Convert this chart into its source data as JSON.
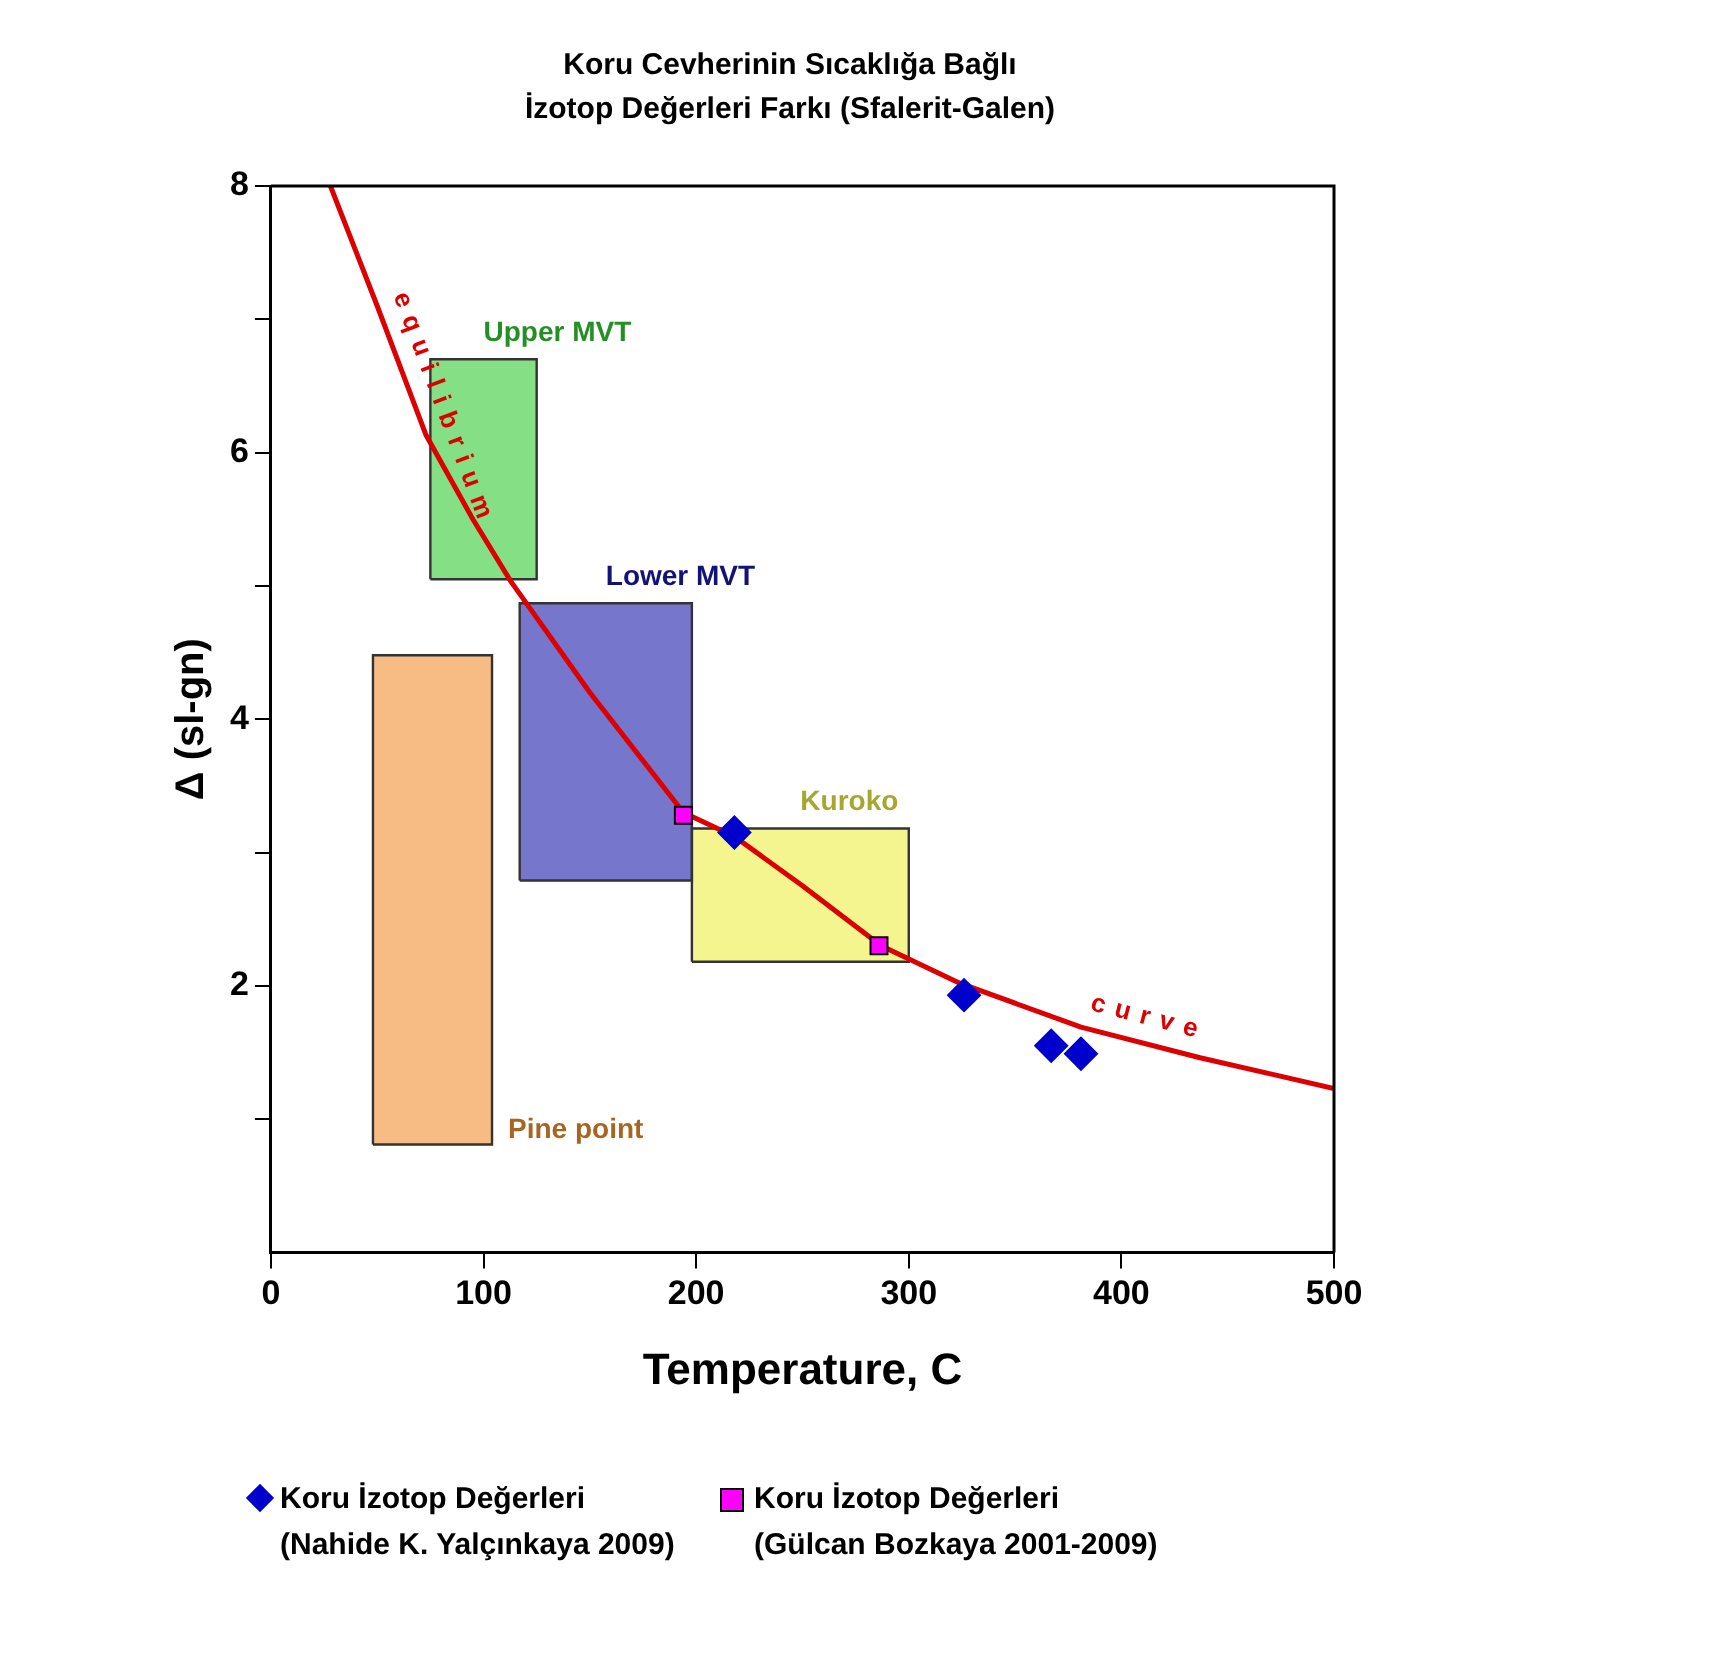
{
  "chart_data": {
    "type": "scatter",
    "title": "Koru Cevherinin Sıcaklığa Bağlı İzotop Değerleri Farkı (Sfalerit-Galen)",
    "xlabel": "Temperature, C",
    "ylabel": "Δ (sl-gn)",
    "xlim": [
      0,
      500
    ],
    "xticks": [
      0,
      100,
      200,
      300,
      400,
      500
    ],
    "ylim": [
      0,
      8
    ],
    "yticks": [
      {
        "value": 1,
        "label": null
      },
      2,
      {
        "value": 3,
        "label": null
      },
      4,
      {
        "value": 5,
        "label": null
      },
      6,
      {
        "value": 7,
        "label": null
      },
      8
    ],
    "grid": false,
    "legend": "bottom",
    "series": [
      {
        "name": "Upper MVT",
        "type": "area",
        "color": "#33cc33",
        "x": [
          75,
          75,
          125,
          125,
          75
        ],
        "values": [
          5.05,
          6.7,
          6.7,
          5.05,
          5.05
        ]
      },
      {
        "name": "Lower MVT",
        "type": "area",
        "color": "#1a1aaa",
        "x": [
          117,
          117,
          198,
          198,
          117
        ],
        "values": [
          2.79,
          4.87,
          4.87,
          2.79,
          2.79
        ]
      },
      {
        "name": "Kuroko",
        "type": "area",
        "color": "#eeee44",
        "x": [
          198,
          198,
          300,
          300,
          198
        ],
        "values": [
          2.18,
          3.18,
          3.18,
          2.18,
          2.18
        ]
      },
      {
        "name": "Pine point",
        "type": "area",
        "color": "#f09030",
        "x": [
          48,
          48,
          104,
          104,
          48
        ],
        "values": [
          0.81,
          4.48,
          4.48,
          0.81,
          0.81
        ]
      },
      {
        "type": "line",
        "color": "#dd0000",
        "marker": "none",
        "x": [
          28,
          50,
          73,
          95,
          113,
          150,
          194,
          218,
          250,
          287,
          324,
          381,
          437,
          500
        ],
        "values": [
          8,
          7.1,
          6.13,
          5.5,
          5.03,
          4.2,
          3.3,
          3.12,
          2.75,
          2.3,
          2.02,
          1.69,
          1.46,
          1.23
        ]
      },
      {
        "name": "Koru İzotop Değerleri (Nahide K. Yalçınkaya 2009)",
        "type": "scatter",
        "marker": "diamond",
        "color": "#0000cc",
        "x": [
          218,
          326,
          367,
          381
        ],
        "values": [
          3.15,
          1.93,
          1.55,
          1.49
        ]
      },
      {
        "name": "Koru İzotop Değerleri (Gülcan Bozkaya 2001-2009)",
        "type": "scatter",
        "marker": "square",
        "color": "#ff00ff",
        "x": [
          194,
          286
        ],
        "values": [
          3.28,
          2.3
        ]
      }
    ],
    "annotations": [
      {
        "text": "equilibrium",
        "x": 70,
        "y": 6.25
      },
      {
        "text": "curve",
        "x": 410,
        "y": 1.57
      }
    ]
  }
}
